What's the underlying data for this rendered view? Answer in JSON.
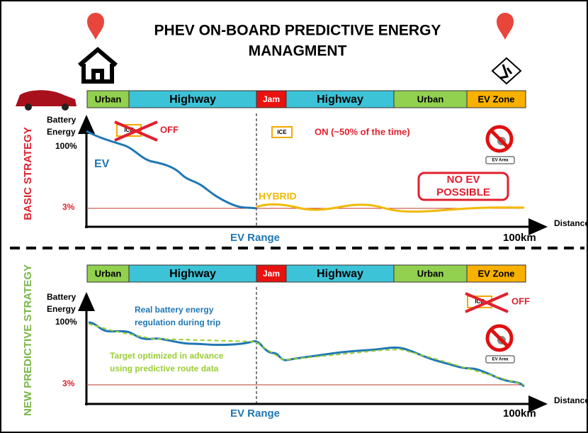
{
  "title": [
    "PHEV ON-BOARD PREDICTIVE ENERGY",
    "MANAGMENT"
  ],
  "route": [
    "Urban",
    "Highway",
    "Jam",
    "Highway",
    "Urban",
    "EV Zone"
  ],
  "axis": {
    "y_label": [
      "Battery",
      "Energy"
    ],
    "top": "100%",
    "bottom": "3%",
    "x_label": "Distance",
    "ev_range": "EV Range",
    "end": "100km"
  },
  "ice_icon": "ICE",
  "ev_area": "EV Area",
  "basic": {
    "label": "BASIC STRATEGY",
    "engine_off": "OFF",
    "engine_on": "ON (~50% of the time)",
    "ev": "EV",
    "hybrid": "HYBRID",
    "no_ev": [
      "NO EV",
      "POSSIBLE"
    ]
  },
  "predictive": {
    "label": "NEW PREDICTIVE STRATEGY",
    "engine_off": "OFF",
    "real": [
      "Real battery energy",
      "regulation during trip"
    ],
    "target": [
      "Target optimized in advance",
      "using predictive route data"
    ]
  }
}
